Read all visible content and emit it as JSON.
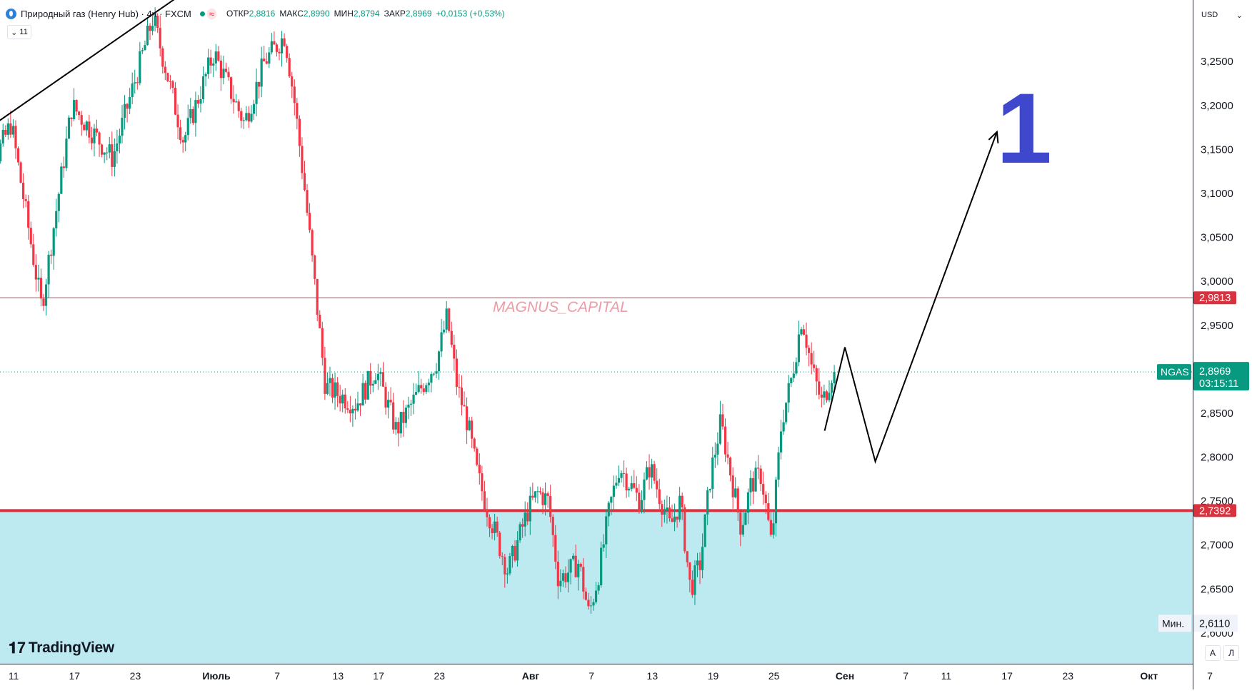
{
  "legend": {
    "title": "Природный газ (Henry Hub) · 4ч · FXCM",
    "open_label": "ОТКР",
    "open": "2,8816",
    "high_label": "МАКС",
    "high": "2,8990",
    "low_label": "МИН",
    "low": "2,8794",
    "close_label": "ЗАКР",
    "close": "2,8969",
    "change": "+0,0153 (+0,53%)",
    "indicators_count": "11"
  },
  "currency": {
    "label": "USD"
  },
  "watermark": "MAGNUS_CAPITAL",
  "big_label": "1",
  "branding": "TradingView",
  "bottom_buttons": {
    "auto": "А",
    "log": "Л"
  },
  "colors": {
    "up": "#089981",
    "down": "#f23645",
    "support_zone": "#bde9f1",
    "support_line": "#d9323f",
    "resistance_line": "#c98a90",
    "big_label": "#3f48cc",
    "watermark": "#ef9aa4",
    "price_label_bg": "#089981"
  },
  "chart_data": {
    "type": "candlestick",
    "symbol": "NGAS",
    "last_price": "2,8969",
    "countdown": "03:15:11",
    "ylim": [
      2.565,
      3.32
    ],
    "y_ticks": [
      "3,2500",
      "3,2000",
      "3,1500",
      "3,1000",
      "3,0500",
      "3,0000",
      "2,9500",
      "2,8500",
      "2,8000",
      "2,7500",
      "2,7000",
      "2,6500",
      "2,6000"
    ],
    "x_ticks": [
      "11",
      "17",
      "23",
      "Июль",
      "7",
      "13",
      "17",
      "23",
      "Авг",
      "7",
      "13",
      "19",
      "25",
      "Сен",
      "7",
      "11",
      "17",
      "23",
      "Окт",
      "7"
    ],
    "levels": [
      {
        "name": "resistance",
        "price": 2.9813,
        "label": "2,9813"
      },
      {
        "name": "support",
        "price": 2.7392,
        "label": "2,7392"
      }
    ],
    "low_marker": {
      "label": "Мин.",
      "price": 2.611,
      "value": "2,6110"
    },
    "support_zone": {
      "top": 2.7392,
      "bottom": 2.565
    },
    "trendline": [
      {
        "date": "Jun 08",
        "price": 3.17
      },
      {
        "date": "Jun 28",
        "price": 3.33
      }
    ],
    "projection": [
      {
        "date": "Aug 30",
        "price": 2.83
      },
      {
        "date": "Sep 01",
        "price": 2.925
      },
      {
        "date": "Sep 04",
        "price": 2.795
      },
      {
        "date": "Sep 16",
        "price": 3.17
      }
    ],
    "anchors": [
      {
        "date": "Jun 08",
        "price": 3.1
      },
      {
        "date": "Jun 11",
        "price": 3.18
      },
      {
        "date": "Jun 14",
        "price": 2.97
      },
      {
        "date": "Jun 17",
        "price": 3.2
      },
      {
        "date": "Jun 21",
        "price": 3.14
      },
      {
        "date": "Jun 25",
        "price": 3.3
      },
      {
        "date": "Jun 28",
        "price": 3.16
      },
      {
        "date": "Jul 01",
        "price": 3.26
      },
      {
        "date": "Jul 04",
        "price": 3.18
      },
      {
        "date": "Jul 06",
        "price": 3.25
      },
      {
        "date": "Jul 08",
        "price": 3.28
      },
      {
        "date": "Jul 09",
        "price": 3.2
      },
      {
        "date": "Jul 10",
        "price": 3.1
      },
      {
        "date": "Jul 11",
        "price": 2.99
      },
      {
        "date": "Jul 12",
        "price": 2.88
      },
      {
        "date": "Jul 15",
        "price": 2.86
      },
      {
        "date": "Jul 17",
        "price": 2.9
      },
      {
        "date": "Jul 19",
        "price": 2.83
      },
      {
        "date": "Jul 21",
        "price": 2.87
      },
      {
        "date": "Jul 23",
        "price": 2.91
      },
      {
        "date": "Jul 24",
        "price": 2.96
      },
      {
        "date": "Jul 25",
        "price": 2.88
      },
      {
        "date": "Jul 26",
        "price": 2.84
      },
      {
        "date": "Jul 27",
        "price": 2.78
      },
      {
        "date": "Jul 28",
        "price": 2.74
      },
      {
        "date": "Jul 30",
        "price": 2.67
      },
      {
        "date": "Aug 01",
        "price": 2.74
      },
      {
        "date": "Aug 02",
        "price": 2.76
      },
      {
        "date": "Aug 03",
        "price": 2.75
      },
      {
        "date": "Aug 04",
        "price": 2.66
      },
      {
        "date": "Aug 06",
        "price": 2.68
      },
      {
        "date": "Aug 07",
        "price": 2.62
      },
      {
        "date": "Aug 08",
        "price": 2.67
      },
      {
        "date": "Aug 09",
        "price": 2.74
      },
      {
        "date": "Aug 10",
        "price": 2.79
      },
      {
        "date": "Aug 12",
        "price": 2.75
      },
      {
        "date": "Aug 13",
        "price": 2.79
      },
      {
        "date": "Aug 15",
        "price": 2.72
      },
      {
        "date": "Aug 16",
        "price": 2.75
      },
      {
        "date": "Aug 17",
        "price": 2.65
      },
      {
        "date": "Aug 18",
        "price": 2.68
      },
      {
        "date": "Aug 19",
        "price": 2.78
      },
      {
        "date": "Aug 20",
        "price": 2.84
      },
      {
        "date": "Aug 22",
        "price": 2.72
      },
      {
        "date": "Aug 23",
        "price": 2.77
      },
      {
        "date": "Aug 24",
        "price": 2.78
      },
      {
        "date": "Aug 25",
        "price": 2.7
      },
      {
        "date": "Aug 26",
        "price": 2.84
      },
      {
        "date": "Aug 27",
        "price": 2.89
      },
      {
        "date": "Aug 28",
        "price": 2.96
      },
      {
        "date": "Aug 29",
        "price": 2.9
      },
      {
        "date": "Aug 30",
        "price": 2.86
      },
      {
        "date": "Aug 31",
        "price": 2.8969
      }
    ]
  }
}
